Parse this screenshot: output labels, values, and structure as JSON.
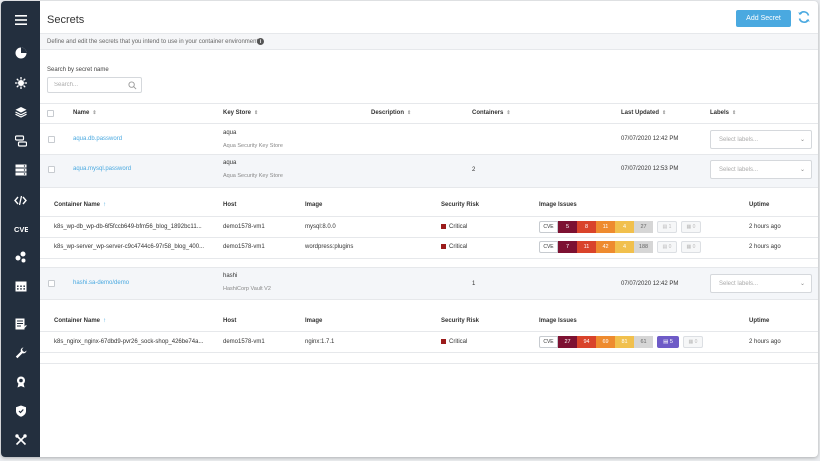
{
  "page": {
    "title": "Secrets",
    "add_button": "Add Secret",
    "description": "Define and edit the secrets that you intend to use in your container environment",
    "info_glyph": "i"
  },
  "search": {
    "label": "Search by secret name",
    "placeholder": "Search..."
  },
  "sidebar": {
    "icons": [
      "menu-icon",
      "dashboard-icon",
      "risk-explorer-icon",
      "images-icon",
      "workloads-icon",
      "infrastructure-icon",
      "functions-icon",
      "vulnerabilities-icon",
      "services-icon",
      "calendar-icon",
      "audit-icon",
      "wrench-icon",
      "compliance-icon",
      "shield-icon",
      "tools-icon"
    ]
  },
  "secrets_table": {
    "headers": [
      "Name",
      "Key Store",
      "Description",
      "Containers",
      "Last Updated",
      "Labels"
    ],
    "labels_placeholder": "Select labels..."
  },
  "secrets": [
    {
      "name": "aqua.db.password",
      "store": "aqua",
      "store_sub": "Aqua Security Key Store",
      "containers": "",
      "updated": "07/07/2020 12:42 PM"
    },
    {
      "name": "aqua.mysql.password",
      "store": "aqua",
      "store_sub": "Aqua Security Key Store",
      "containers": "2",
      "updated": "07/07/2020 12:53 PM"
    },
    {
      "name": "hashi.sa-demo/demo",
      "store": "hashi",
      "store_sub": "HashiCorp Vault V2",
      "containers": "1",
      "updated": "07/07/2020 12:42 PM"
    }
  ],
  "containers_table": {
    "headers": [
      "Container Name",
      "Host",
      "Image",
      "Security Risk",
      "Image Issues",
      "Uptime"
    ],
    "cve_label": "CVE"
  },
  "containers_group1": [
    {
      "name": "k8s_wp-db_wp-db-6f5fccb649-bfm56_blog_1892bc11...",
      "host": "demo1578-vm1",
      "image": "mysql:8.0.0",
      "risk": "Critical",
      "issues": [
        "5",
        "8",
        "11",
        "4",
        "27"
      ],
      "extra": [
        "1",
        "0"
      ],
      "uptime": "2 hours ago"
    },
    {
      "name": "k8s_wp-server_wp-server-c9c4744c6-97r58_blog_400...",
      "host": "demo1578-vm1",
      "image": "wordpress:plugins",
      "risk": "Critical",
      "issues": [
        "7",
        "11",
        "42",
        "4",
        "188"
      ],
      "extra": [
        "0",
        "0"
      ],
      "uptime": "2 hours ago"
    }
  ],
  "containers_group2": [
    {
      "name": "k8s_nginx_nginx-67dbd9-pvr26_sock-shop_426be74a...",
      "host": "demo1578-vm1",
      "image": "nginx:1.7.1",
      "risk": "Critical",
      "issues": [
        "27",
        "94",
        "69",
        "81",
        "61"
      ],
      "malware": "5",
      "extra": [
        "0"
      ],
      "uptime": "2 hours ago"
    }
  ]
}
